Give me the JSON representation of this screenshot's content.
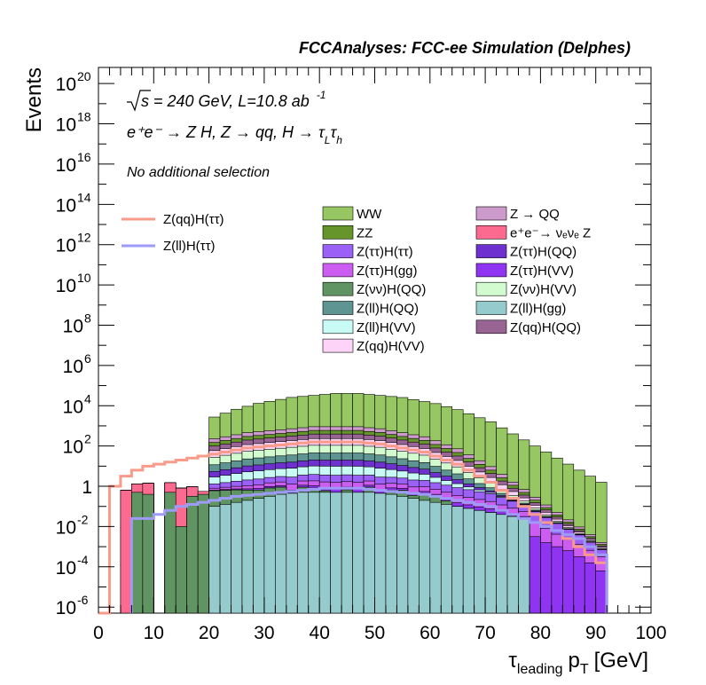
{
  "chart_data": {
    "type": "area",
    "title": "FCCAnalyses: FCC-ee Simulation (Delphes)",
    "xlabel": "τ",
    "xlabel_sub": "leading",
    "xlabel_p": "p",
    "xlabel_p_sub": "T",
    "xlabel_unit": "[GeV]",
    "ylabel": "Events",
    "xlim": [
      0,
      100
    ],
    "ylim_log10": [
      -6.3,
      20.8
    ],
    "log_y": true,
    "x_ticks": [
      "0",
      "10",
      "20",
      "30",
      "40",
      "50",
      "60",
      "70",
      "80",
      "90",
      "100"
    ],
    "y_ticks": [
      {
        "base": "10",
        "exp": "-6",
        "log": -6
      },
      {
        "base": "10",
        "exp": "-4",
        "log": -4
      },
      {
        "base": "10",
        "exp": "-2",
        "log": -2
      },
      {
        "base": "1",
        "exp": "",
        "log": 0
      },
      {
        "base": "10",
        "exp": "2",
        "log": 2
      },
      {
        "base": "10",
        "exp": "4",
        "log": 4
      },
      {
        "base": "10",
        "exp": "6",
        "log": 6
      },
      {
        "base": "10",
        "exp": "8",
        "log": 8
      },
      {
        "base": "10",
        "exp": "10",
        "log": 10
      },
      {
        "base": "10",
        "exp": "12",
        "log": 12
      },
      {
        "base": "10",
        "exp": "14",
        "log": 14
      },
      {
        "base": "10",
        "exp": "16",
        "log": 16
      },
      {
        "base": "10",
        "exp": "18",
        "log": 18
      },
      {
        "base": "10",
        "exp": "20",
        "log": 20
      }
    ],
    "annotations": {
      "line1_sqrt": "s",
      "line1_rest": " = 240 GeV, L=10.8 ab",
      "line1_sup": "-1",
      "line2": "e⁺e⁻ → Z H, Z → qq, H → τ",
      "line2_sub1": "L",
      "line2_tau": "τ",
      "line2_sub2": "h",
      "line3": "No additional selection"
    },
    "bin_width": 2,
    "stack": [
      {
        "name": "Z(ℓℓ)H(gg)",
        "color": "#96cbcd",
        "log10": [
          null,
          null,
          null,
          null,
          null,
          null,
          null,
          null,
          null,
          null,
          -1.0,
          -0.9,
          -0.8,
          -0.7,
          -0.6,
          -0.5,
          -0.4,
          -0.35,
          -0.3,
          -0.3,
          -0.3,
          -0.3,
          -0.3,
          -0.3,
          -0.3,
          -0.35,
          -0.4,
          -0.5,
          -0.6,
          -0.7,
          -0.8,
          -0.9,
          -1.0,
          -1.1,
          -1.2,
          -1.3,
          -1.4,
          -1.5,
          -1.6,
          null,
          null,
          null,
          null,
          null,
          null,
          null,
          null,
          null,
          null,
          null
        ]
      },
      {
        "name": "Z(νν)H(QQ)",
        "color": "#609462",
        "log10": [
          null,
          null,
          null,
          -0.3,
          -0.4,
          null,
          -0.3,
          -2.0,
          -0.5,
          -0.4,
          -0.3,
          -0.3,
          -0.3,
          -0.35,
          -0.4,
          -0.3,
          -0.3,
          null,
          -0.4,
          -0.5,
          -1.0,
          null,
          -0.8,
          null,
          -0.4,
          null,
          -0.6,
          -0.5,
          -1.0,
          -0.6,
          -0.8,
          -1.2,
          null,
          null,
          null,
          null,
          null,
          null,
          null,
          null,
          null,
          null,
          null,
          null,
          null,
          null,
          null,
          null,
          null,
          null
        ]
      },
      {
        "name": "e⁺e⁻→ νₑνₑ Z",
        "color": "#fd6a8f",
        "log10": [
          null,
          null,
          -0.2,
          -0.1,
          0.0,
          null,
          0.0,
          -0.1,
          -0.2,
          -0.8,
          null,
          null,
          null,
          null,
          null,
          null,
          null,
          null,
          null,
          null,
          null,
          null,
          null,
          null,
          null,
          null,
          null,
          null,
          null,
          null,
          null,
          null,
          null,
          null,
          null,
          null,
          null,
          null,
          null,
          null,
          null,
          null,
          null,
          null,
          null,
          null,
          null,
          null,
          null,
          null
        ]
      },
      {
        "name": "Z(ττ)H(VV)",
        "color": "#8f34f0",
        "log10": [
          null,
          null,
          null,
          null,
          null,
          null,
          null,
          null,
          null,
          null,
          -1.4,
          -1.2,
          -1.1,
          -1.0,
          -0.9,
          -0.8,
          -0.75,
          -0.7,
          -0.65,
          -0.6,
          -0.6,
          -0.6,
          -0.6,
          -0.6,
          -0.65,
          -0.7,
          -0.75,
          -0.8,
          -0.9,
          -1.0,
          -1.1,
          -1.2,
          -1.3,
          -1.4,
          -1.5,
          -1.6,
          -1.8,
          -2.0,
          -2.2,
          -2.5,
          -2.8,
          -3.0,
          -3.2,
          -3.5,
          -3.8,
          -4.2,
          null,
          null,
          null,
          null
        ]
      },
      {
        "name": "Z(ττ)H(gg)",
        "color": "#cb5ef0",
        "log10": [
          null,
          null,
          null,
          null,
          null,
          null,
          null,
          null,
          null,
          null,
          -0.8,
          -0.7,
          -0.6,
          -0.5,
          -0.4,
          -0.3,
          -0.25,
          -0.2,
          -0.15,
          -0.1,
          -0.1,
          -0.1,
          -0.1,
          -0.1,
          -0.15,
          -0.2,
          -0.25,
          -0.3,
          -0.35,
          -0.4,
          -0.5,
          -0.6,
          -0.7,
          -0.8,
          -0.9,
          -1.0,
          -1.2,
          -1.4,
          -1.6,
          -1.9,
          -2.2,
          -2.5,
          -2.8,
          -3.0,
          -3.3,
          -3.6,
          null,
          null,
          null,
          null
        ]
      },
      {
        "name": "Z(ττ)H(ττ)",
        "color": "#9b61f7",
        "log10": [
          null,
          null,
          null,
          null,
          null,
          null,
          null,
          null,
          null,
          null,
          -0.3,
          -0.2,
          -0.1,
          0.0,
          0.05,
          0.1,
          0.15,
          0.2,
          0.25,
          0.3,
          0.3,
          0.3,
          0.3,
          0.3,
          0.25,
          0.2,
          0.15,
          0.1,
          0.05,
          0.0,
          -0.1,
          -0.2,
          -0.3,
          -0.4,
          -0.5,
          -0.6,
          -0.8,
          -1.0,
          -1.2,
          -1.4,
          -1.7,
          -2.0,
          -2.3,
          -2.6,
          -3.0,
          -3.4,
          null,
          null,
          null,
          null
        ]
      },
      {
        "name": "Z(ℓℓ)H(VV)",
        "color": "#c9fbf6",
        "log10": [
          null,
          null,
          null,
          null,
          null,
          null,
          null,
          null,
          null,
          null,
          0.2,
          0.3,
          0.4,
          0.5,
          0.55,
          0.6,
          0.65,
          0.7,
          0.75,
          0.8,
          0.8,
          0.8,
          0.8,
          0.8,
          0.75,
          0.7,
          0.6,
          0.5,
          0.4,
          0.3,
          0.1,
          -0.1,
          -0.3,
          -0.6,
          -0.9,
          -1.2,
          -1.6,
          -2.0,
          -2.4,
          -2.8,
          -3.2,
          -3.6,
          -4.0,
          -4.4,
          -4.8,
          -5.2,
          null,
          null,
          null,
          null
        ]
      },
      {
        "name": "Z(ττ)H(QQ)",
        "color": "#6e31cf",
        "log10": [
          null,
          null,
          null,
          null,
          null,
          null,
          null,
          null,
          null,
          null,
          0.4,
          0.5,
          0.6,
          0.7,
          0.75,
          0.8,
          0.85,
          0.9,
          0.95,
          1.0,
          1.0,
          1.0,
          1.0,
          1.0,
          0.95,
          0.9,
          0.8,
          0.7,
          0.6,
          0.5,
          0.3,
          0.1,
          -0.1,
          -0.4,
          -0.7,
          -1.0,
          -1.4,
          -1.8,
          -2.2,
          -2.6,
          -3.0,
          -3.4,
          -3.8,
          -4.2,
          -4.6,
          -5.0,
          null,
          null,
          null,
          null
        ]
      },
      {
        "name": "Z(ℓℓ)H(QQ)",
        "color": "#5e9593",
        "log10": [
          null,
          null,
          null,
          null,
          null,
          null,
          null,
          null,
          null,
          null,
          0.8,
          0.9,
          1.0,
          1.1,
          1.15,
          1.2,
          1.25,
          1.3,
          1.35,
          1.4,
          1.4,
          1.4,
          1.4,
          1.4,
          1.35,
          1.3,
          1.2,
          1.1,
          1.0,
          0.9,
          0.7,
          0.5,
          0.3,
          0.0,
          -0.3,
          -0.6,
          -1.0,
          -1.4,
          -1.8,
          -2.2,
          -2.6,
          -3.0,
          -3.4,
          -3.8,
          -4.2,
          -4.6,
          null,
          null,
          null,
          null
        ]
      },
      {
        "name": "Z(νν)H(VV)",
        "color": "#d2fbcf",
        "log10": [
          null,
          null,
          null,
          null,
          null,
          null,
          null,
          null,
          null,
          null,
          1.2,
          1.3,
          1.4,
          1.5,
          1.55,
          1.6,
          1.65,
          1.7,
          1.75,
          1.8,
          1.8,
          1.8,
          1.8,
          1.8,
          1.75,
          1.7,
          1.6,
          1.5,
          1.4,
          1.3,
          1.1,
          0.9,
          0.7,
          0.4,
          0.1,
          -0.2,
          -0.6,
          -1.0,
          -1.4,
          -1.8,
          -2.2,
          -2.6,
          -3.0,
          -3.4,
          -3.8,
          -4.2,
          null,
          null,
          null,
          null
        ]
      },
      {
        "name": "Z(qq)H(VV)",
        "color": "#fdd4f8",
        "log10": [
          null,
          null,
          null,
          null,
          null,
          null,
          null,
          null,
          null,
          null,
          1.5,
          1.6,
          1.7,
          1.8,
          1.85,
          1.9,
          1.95,
          2.0,
          2.05,
          2.1,
          2.1,
          2.1,
          2.1,
          2.1,
          2.05,
          2.0,
          1.9,
          1.8,
          1.7,
          1.6,
          1.4,
          1.2,
          1.0,
          0.7,
          0.4,
          0.1,
          -0.3,
          -0.7,
          -1.1,
          -1.5,
          -1.9,
          -2.3,
          -2.7,
          -3.1,
          -3.5,
          -3.9,
          null,
          null,
          null,
          null
        ]
      },
      {
        "name": "Z(qq)H(QQ)",
        "color": "#986494",
        "log10": [
          null,
          null,
          null,
          null,
          null,
          null,
          null,
          null,
          null,
          null,
          1.6,
          1.7,
          1.8,
          1.9,
          1.95,
          2.0,
          2.05,
          2.1,
          2.15,
          2.2,
          2.2,
          2.2,
          2.2,
          2.2,
          2.15,
          2.1,
          2.0,
          1.9,
          1.8,
          1.7,
          1.5,
          1.3,
          1.1,
          0.8,
          0.5,
          0.2,
          -0.2,
          -0.6,
          -1.0,
          -1.4,
          -1.8,
          -2.2,
          -2.6,
          -3.0,
          -3.4,
          -3.8,
          null,
          null,
          null,
          null
        ]
      },
      {
        "name": "ZZ",
        "color": "#66952b",
        "log10": [
          null,
          null,
          null,
          null,
          null,
          null,
          null,
          null,
          null,
          null,
          1.7,
          1.8,
          1.9,
          2.0,
          2.05,
          2.1,
          2.15,
          2.2,
          2.25,
          2.3,
          2.3,
          2.3,
          2.3,
          2.3,
          2.25,
          2.2,
          2.1,
          2.0,
          1.9,
          1.8,
          1.6,
          1.4,
          1.2,
          0.9,
          0.6,
          0.3,
          -0.1,
          -0.5,
          -0.9,
          -1.3,
          -1.7,
          -2.1,
          -2.5,
          -2.9,
          -3.3,
          -3.7,
          null,
          null,
          null,
          null
        ]
      },
      {
        "name": "Z → QQ",
        "color": "#cc9bcb",
        "log10": [
          null,
          null,
          null,
          null,
          null,
          null,
          null,
          null,
          null,
          null,
          1.9,
          2.0,
          2.1,
          2.2,
          2.25,
          2.3,
          2.35,
          2.4,
          2.45,
          2.5,
          2.5,
          2.5,
          2.5,
          2.5,
          2.45,
          2.4,
          2.3,
          2.2,
          2.1,
          2.0,
          1.8,
          1.6,
          1.4,
          1.1,
          0.8,
          0.5,
          0.1,
          -0.3,
          -0.7,
          -1.1,
          -1.5,
          -1.9,
          -2.3,
          -2.7,
          -3.1,
          -3.5,
          null,
          null,
          null,
          null
        ]
      },
      {
        "name": "WW",
        "color": "#96c763",
        "log10": [
          null,
          null,
          null,
          null,
          null,
          null,
          null,
          null,
          null,
          null,
          3.4,
          3.6,
          3.8,
          3.95,
          4.1,
          4.2,
          4.3,
          4.4,
          4.45,
          4.5,
          4.55,
          4.6,
          4.6,
          4.6,
          4.55,
          4.5,
          4.45,
          4.4,
          4.3,
          4.2,
          4.1,
          3.95,
          3.8,
          3.6,
          3.4,
          3.2,
          2.9,
          2.6,
          2.3,
          2.0,
          1.7,
          1.4,
          1.1,
          0.8,
          0.5,
          0.2,
          null,
          null,
          null,
          null
        ]
      }
    ],
    "lines": [
      {
        "name": "Z(qq)H(ττ)",
        "color": "#f99b8b",
        "log10": [
          -6.5,
          0.0,
          0.5,
          0.8,
          1.0,
          1.1,
          1.2,
          1.3,
          1.4,
          1.5,
          1.6,
          1.7,
          1.8,
          1.9,
          1.95,
          2.0,
          2.05,
          2.1,
          2.15,
          2.2,
          2.2,
          2.2,
          2.2,
          2.2,
          2.15,
          2.1,
          2.0,
          1.9,
          1.8,
          1.7,
          1.5,
          1.3,
          1.1,
          0.8,
          0.5,
          0.2,
          -0.2,
          -0.6,
          -1.0,
          -1.4,
          -1.8,
          -2.2,
          -2.6,
          -3.0,
          -3.4,
          -3.8,
          null,
          null,
          null,
          null
        ]
      },
      {
        "name": "Z(ℓℓ)H(ττ)",
        "color": "#9e9af8",
        "log10": [
          null,
          null,
          null,
          -1.6,
          -1.6,
          -1.4,
          -1.2,
          -1.0,
          -0.9,
          -0.8,
          -0.7,
          -0.6,
          -0.5,
          -0.45,
          -0.4,
          -0.35,
          -0.3,
          -0.25,
          -0.2,
          -0.15,
          -0.1,
          -0.1,
          -0.1,
          -0.1,
          -0.15,
          -0.2,
          -0.25,
          -0.3,
          -0.35,
          -0.4,
          -0.5,
          -0.6,
          -0.7,
          -0.8,
          -0.9,
          -1.0,
          -1.2,
          -1.4,
          -1.6,
          -1.8,
          -2.0,
          -2.2,
          -2.4,
          -2.6,
          -3.0,
          -3.4,
          null,
          null,
          null,
          null
        ]
      }
    ],
    "legend_lines": [
      {
        "label": "Z(qq)H(ττ)",
        "color": "#f99b8b"
      },
      {
        "label": "Z(ll)H(ττ)",
        "color": "#9e9af8"
      }
    ],
    "legend_boxes": [
      {
        "label": "WW",
        "color": "#96c763"
      },
      {
        "label": "Z → QQ",
        "color": "#cc9bcb"
      },
      {
        "label": "ZZ",
        "color": "#66952b"
      },
      {
        "label": "e⁺e⁻→ νₑνₑ Z",
        "color": "#fd6a8f"
      },
      {
        "label": "Z(ττ)H(ττ)",
        "color": "#9b61f7"
      },
      {
        "label": "Z(ττ)H(QQ)",
        "color": "#6e31cf"
      },
      {
        "label": "Z(ττ)H(gg)",
        "color": "#cb5ef0"
      },
      {
        "label": "Z(ττ)H(VV)",
        "color": "#8f34f0"
      },
      {
        "label": "Z(νν)H(QQ)",
        "color": "#609462"
      },
      {
        "label": "Z(νν)H(VV)",
        "color": "#d2fbcf"
      },
      {
        "label": "Z(ll)H(QQ)",
        "color": "#5e9593"
      },
      {
        "label": "Z(ll)H(gg)",
        "color": "#96cbcd"
      },
      {
        "label": "Z(ll)H(VV)",
        "color": "#c9fbf6"
      },
      {
        "label": "Z(qq)H(QQ)",
        "color": "#986494"
      },
      {
        "label": "Z(qq)H(VV)",
        "color": "#fdd4f8"
      }
    ]
  }
}
